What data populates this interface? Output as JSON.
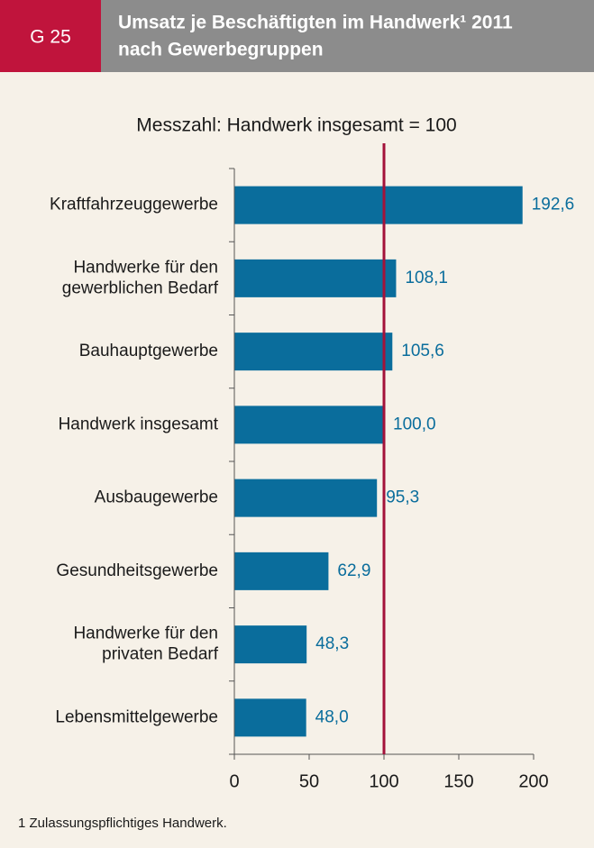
{
  "header": {
    "code": "G 25",
    "title_lines": [
      "Umsatz je Beschäftigten im Handwerk¹ 2011",
      "nach Gewerbegruppen"
    ]
  },
  "chart_data": {
    "type": "hbar",
    "subtitle": "Messzahl: Handwerk insgesamt = 100",
    "categories": [
      "Kraftfahrzeuggewerbe",
      "Handwerke für den\ngewerblichen Bedarf",
      "Bauhauptgewerbe",
      "Handwerk insgesamt",
      "Ausbaugewerbe",
      "Gesundheitsgewerbe",
      "Handwerke für den\nprivaten Bedarf",
      "Lebensmittelgewerbe"
    ],
    "values": [
      192.6,
      108.1,
      105.6,
      100.0,
      95.3,
      62.9,
      48.3,
      48.0
    ],
    "value_labels": [
      "192,6",
      "108,1",
      "105,6",
      "100,0",
      "95,3",
      "62,9",
      "48,3",
      "48,0"
    ],
    "color": "#0a6d9c",
    "reference_line": 100,
    "reference_color": "#a3123a",
    "xlim": [
      0,
      200
    ],
    "xticks": [
      0,
      50,
      100,
      150,
      200
    ],
    "footnote": "1 Zulassungspflichtiges Handwerk."
  }
}
